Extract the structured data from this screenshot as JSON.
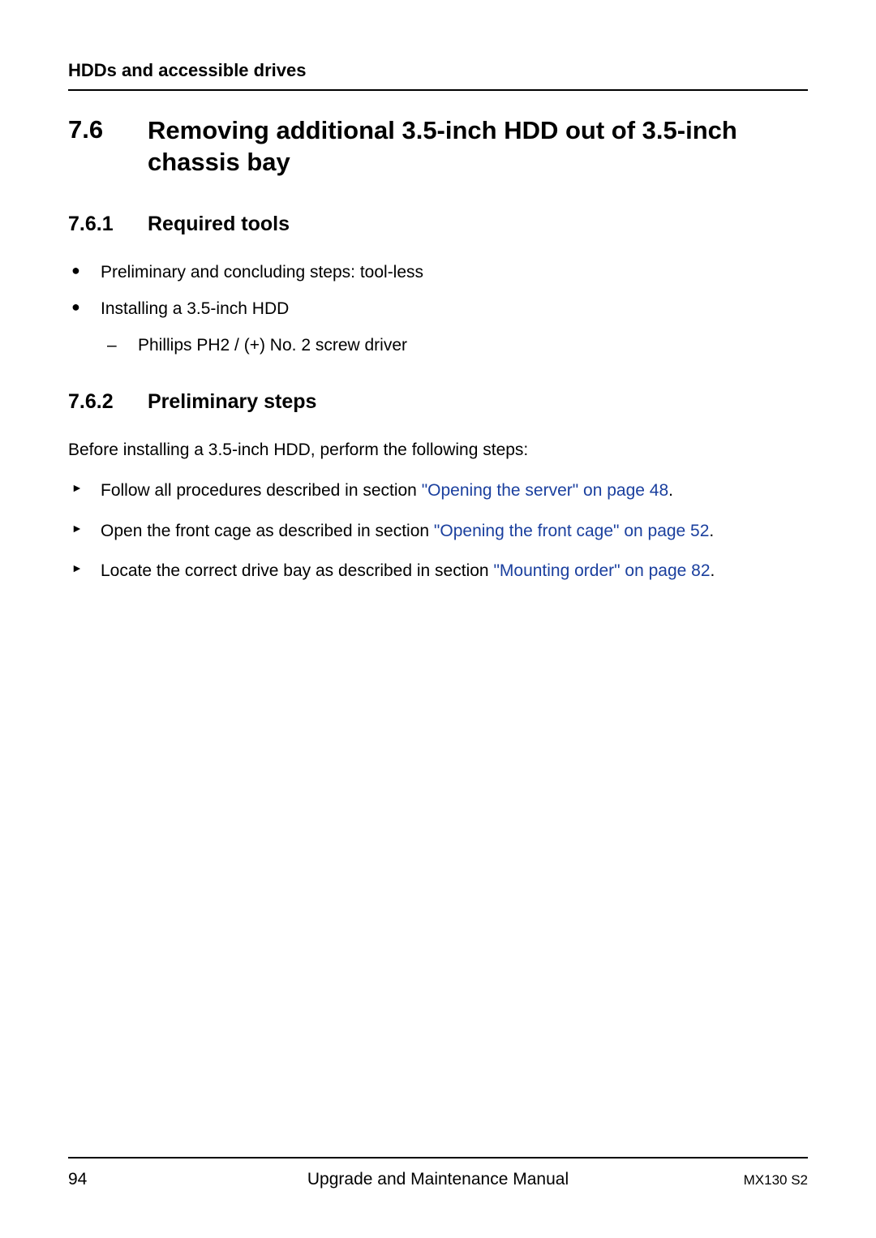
{
  "colors": {
    "text": "#000000",
    "link": "#1a3f9e",
    "background": "#ffffff",
    "rule": "#000000"
  },
  "header": {
    "text": "HDDs and accessible drives"
  },
  "section": {
    "number": "7.6",
    "title": "Removing additional 3.5-inch HDD out of 3.5-inch chassis bay"
  },
  "subsection1": {
    "number": "7.6.1",
    "title": "Required tools",
    "bullets": [
      {
        "text": "Preliminary and concluding steps: tool-less"
      },
      {
        "text": "Installing a 3.5-inch HDD",
        "sub": "Phillips PH2 / (+) No. 2 screw driver"
      }
    ]
  },
  "subsection2": {
    "number": "7.6.2",
    "title": "Preliminary steps",
    "intro": "Before installing a 3.5-inch HDD, perform the following steps:",
    "arrows": [
      {
        "prefix": "Follow all procedures described in section ",
        "link": "\"Opening the server\" on page 48",
        "suffix": "."
      },
      {
        "prefix": "Open the front cage as described in section ",
        "link": "\"Opening the front cage\" on page 52",
        "suffix": "."
      },
      {
        "prefix": "Locate the correct drive bay as described in section ",
        "link": "\"Mounting order\" on page 82",
        "suffix": "."
      }
    ]
  },
  "footer": {
    "page": "94",
    "title": "Upgrade and Maintenance Manual",
    "model": "MX130 S2"
  }
}
